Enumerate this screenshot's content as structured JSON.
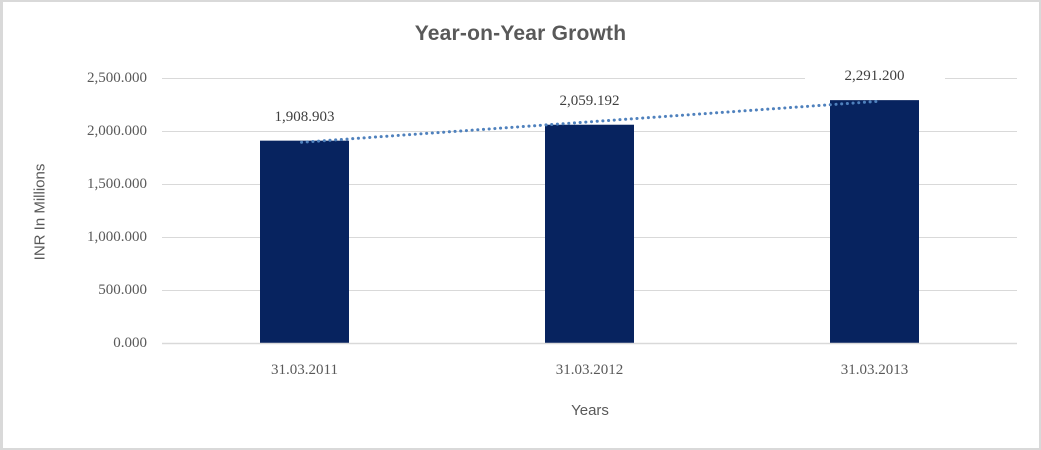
{
  "chart_data": {
    "type": "bar",
    "title": "Year-on-Year Growth",
    "xlabel": "Years",
    "ylabel": "INR In Millions",
    "categories": [
      "31.03.2011",
      "31.03.2012",
      "31.03.2013"
    ],
    "values": [
      1908.903,
      2059.192,
      2291.2
    ],
    "data_labels": [
      "1,908.903",
      "2,059.192",
      "2,291.200"
    ],
    "ylim": [
      0,
      2500
    ],
    "ytick_values": [
      0,
      500,
      1000,
      1500,
      2000,
      2500
    ],
    "ytick_labels": [
      "0.000",
      "500.000",
      "1,000.000",
      "1,500.000",
      "2,000.000",
      "2,500.000"
    ],
    "grid": true,
    "legend": "none",
    "trendline": {
      "type": "linear",
      "style": "dotted"
    },
    "colors": {
      "bar": "#07235F",
      "trendline": "#4F81BD",
      "gridline": "#D9D9D9",
      "axis_line": "#D9D9D9",
      "title_text": "#595959",
      "axis_text": "#595959",
      "label_text": "#3F3F3F",
      "background": "#FFFFFF",
      "border": "#D9D9D9"
    }
  }
}
